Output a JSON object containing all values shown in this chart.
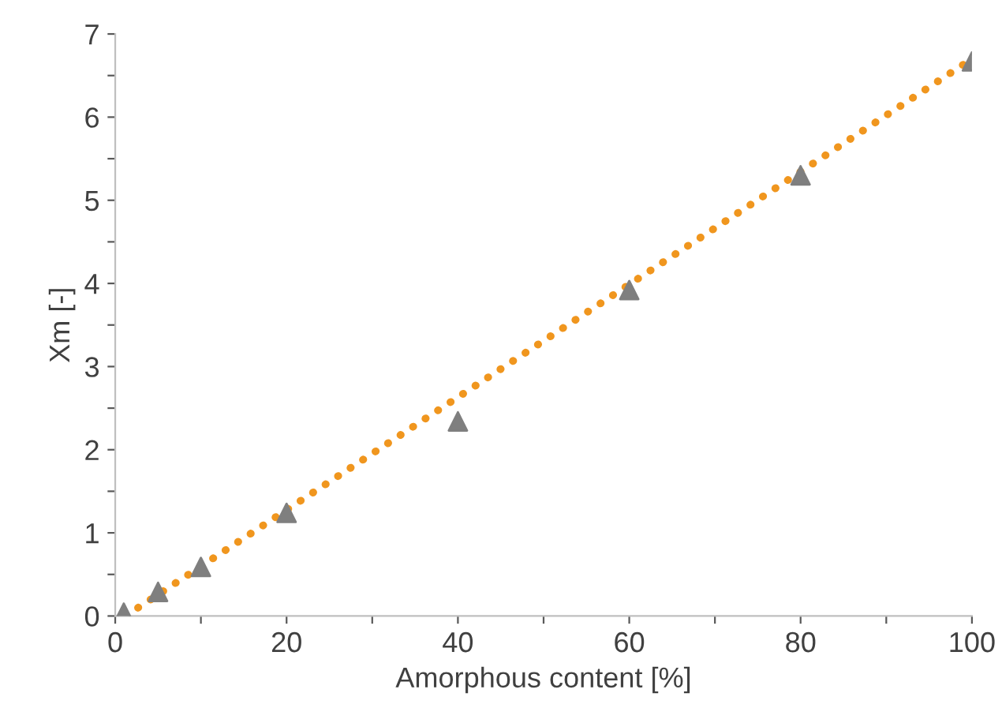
{
  "chart_data": {
    "type": "scatter",
    "xlabel": "Amorphous content [%]",
    "ylabel": "Xm [-]",
    "xlim": [
      0,
      100
    ],
    "ylim": [
      0,
      7
    ],
    "xticks": [
      0,
      {
        "value": 10,
        "label": null
      },
      20,
      {
        "value": 30,
        "label": null
      },
      40,
      {
        "value": 50,
        "label": null
      },
      60,
      {
        "value": 70,
        "label": null
      },
      80,
      {
        "value": 90,
        "label": null
      },
      100
    ],
    "yticks": [
      0,
      {
        "value": 0.5,
        "label": null
      },
      1,
      {
        "value": 1.5,
        "label": null
      },
      2,
      {
        "value": 2.5,
        "label": null
      },
      3,
      {
        "value": 3.5,
        "label": null
      },
      4,
      {
        "value": 4.5,
        "label": null
      },
      5,
      {
        "value": 5.5,
        "label": null
      },
      6,
      {
        "value": 6.5,
        "label": null
      },
      7
    ],
    "grid": false,
    "legend": false,
    "series": [
      {
        "color": "#7f7f7f",
        "marker": "triangle",
        "x": [
          1,
          5,
          10,
          20,
          40,
          60,
          80,
          100
        ],
        "values": [
          0.04,
          0.29,
          0.59,
          1.24,
          2.34,
          3.92,
          5.3,
          6.67
        ]
      },
      {
        "type": "line",
        "color": "#f0961e",
        "marker": "none",
        "line_style": "dotted",
        "x": [
          1.2,
          100
        ],
        "values": [
          0,
          6.7
        ]
      }
    ]
  }
}
